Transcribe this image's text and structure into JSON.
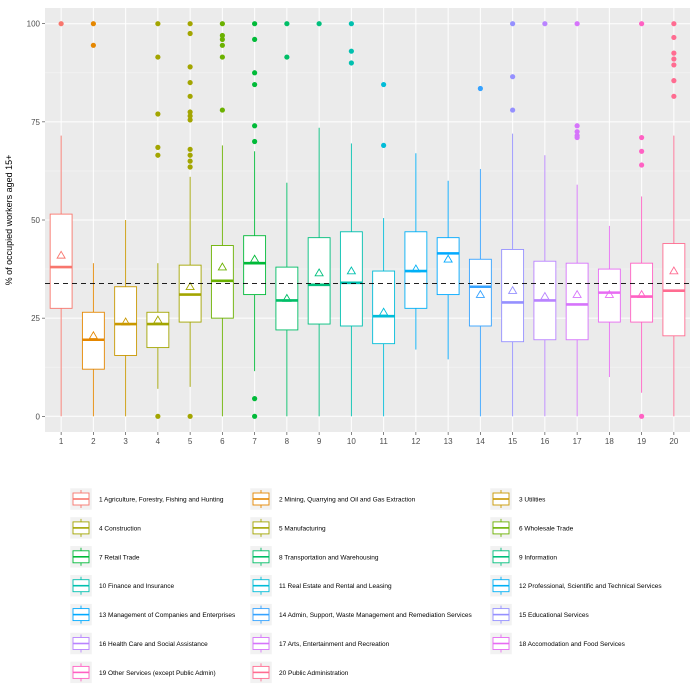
{
  "chart_data": {
    "type": "boxplot",
    "title": "",
    "xlabel": "",
    "ylabel": "% of occupied workers aged 15+",
    "ylim": [
      -4,
      104
    ],
    "y_ticks": [
      0,
      25,
      50,
      75,
      100
    ],
    "categories": [
      "1",
      "2",
      "3",
      "4",
      "5",
      "6",
      "7",
      "8",
      "9",
      "10",
      "11",
      "12",
      "13",
      "14",
      "15",
      "16",
      "17",
      "18",
      "19",
      "20"
    ],
    "reference_line": 33.8,
    "grid": true,
    "legend_position": "bottom",
    "series": [
      {
        "name": "1 Agriculture, Forestry, Fishing and Hunting",
        "color": "#F8766D",
        "whisker_low": 0,
        "q1": 27.5,
        "median": 38,
        "q3": 51.5,
        "whisker_high": 71.5,
        "mean": 41,
        "outliers": [
          100
        ]
      },
      {
        "name": "2 Mining, Quarrying and Oil and Gas Extraction",
        "color": "#E58700",
        "whisker_low": 0,
        "q1": 12,
        "median": 19.5,
        "q3": 26.5,
        "whisker_high": 39,
        "mean": 20.5,
        "outliers": [
          94.5,
          100
        ]
      },
      {
        "name": "3 Utilities",
        "color": "#C99800",
        "whisker_low": 0,
        "q1": 15.5,
        "median": 23.5,
        "q3": 33,
        "whisker_high": 50,
        "mean": 24,
        "outliers": []
      },
      {
        "name": "4 Construction",
        "color": "#A3A500",
        "whisker_low": 7,
        "q1": 17.5,
        "median": 23.5,
        "q3": 26.5,
        "whisker_high": 39,
        "mean": 24.5,
        "outliers": [
          0,
          66.5,
          68.5,
          77,
          91.5,
          100
        ]
      },
      {
        "name": "5 Manufacturing",
        "color": "#A3A500",
        "whisker_low": 7.5,
        "q1": 24,
        "median": 31,
        "q3": 38.5,
        "whisker_high": 61,
        "mean": 33,
        "outliers": [
          0,
          63.5,
          65,
          66.5,
          68,
          75.5,
          76.5,
          77.5,
          81.5,
          85,
          89,
          97.5,
          100
        ]
      },
      {
        "name": "6 Wholesale Trade",
        "color": "#6BB100",
        "whisker_low": 0,
        "q1": 25,
        "median": 34.5,
        "q3": 43.5,
        "whisker_high": 69,
        "mean": 38,
        "outliers": [
          78,
          91.5,
          94.5,
          96,
          97,
          100
        ]
      },
      {
        "name": "7 Retail Trade",
        "color": "#00BA38",
        "whisker_low": 11.5,
        "q1": 31,
        "median": 39,
        "q3": 46,
        "whisker_high": 67.5,
        "mean": 40,
        "outliers": [
          0,
          4.5,
          70,
          74,
          84.5,
          87.5,
          96,
          100
        ]
      },
      {
        "name": "8 Transportation and Warehousing",
        "color": "#00BE67",
        "whisker_low": 0,
        "q1": 22,
        "median": 29.5,
        "q3": 38,
        "whisker_high": 59.5,
        "mean": 30,
        "outliers": [
          91.5,
          100
        ]
      },
      {
        "name": "9 Information",
        "color": "#00BF7D",
        "whisker_low": 0,
        "q1": 23.5,
        "median": 33.5,
        "q3": 45.5,
        "whisker_high": 73.5,
        "mean": 36.5,
        "outliers": [
          100
        ]
      },
      {
        "name": "10 Finance and Insurance",
        "color": "#00C0AF",
        "whisker_low": 0,
        "q1": 23,
        "median": 34,
        "q3": 47,
        "whisker_high": 69.5,
        "mean": 37,
        "outliers": [
          90,
          93,
          100
        ]
      },
      {
        "name": "11 Real Estate and Rental and Leasing",
        "color": "#00BCD8",
        "whisker_low": 0,
        "q1": 18.5,
        "median": 25.5,
        "q3": 37,
        "whisker_high": 50.5,
        "mean": 26.5,
        "outliers": [
          69,
          84.5
        ]
      },
      {
        "name": "12 Professional, Scientific and Technical Services",
        "color": "#00B0F6",
        "whisker_low": 17,
        "q1": 27.5,
        "median": 37,
        "q3": 47,
        "whisker_high": 67,
        "mean": 37.5,
        "outliers": []
      },
      {
        "name": "13 Management of Companies and Enterprises",
        "color": "#00A9FF",
        "whisker_low": 14.5,
        "q1": 31,
        "median": 41.5,
        "q3": 45.5,
        "whisker_high": 60,
        "mean": 40,
        "outliers": []
      },
      {
        "name": "14 Admin, Support, Waste Management and Remediation Services",
        "color": "#35A2FF",
        "whisker_low": 0,
        "q1": 23,
        "median": 33,
        "q3": 40,
        "whisker_high": 63,
        "mean": 31,
        "outliers": [
          83.5
        ]
      },
      {
        "name": "15 Educational Services",
        "color": "#9590FF",
        "whisker_low": 0,
        "q1": 19,
        "median": 29,
        "q3": 42.5,
        "whisker_high": 72,
        "mean": 32,
        "outliers": [
          78,
          86.5,
          100
        ]
      },
      {
        "name": "16 Health Care and Social Assistance",
        "color": "#B983FF",
        "whisker_low": 0,
        "q1": 19.5,
        "median": 29.5,
        "q3": 39.5,
        "whisker_high": 66.5,
        "mean": 30.5,
        "outliers": [
          100
        ]
      },
      {
        "name": "17 Arts, Entertainment and Recreation",
        "color": "#D674FB",
        "whisker_low": 0,
        "q1": 19.5,
        "median": 28.5,
        "q3": 39,
        "whisker_high": 59,
        "mean": 31,
        "outliers": [
          71,
          71.5,
          72.5,
          74,
          100
        ]
      },
      {
        "name": "18 Accomodation and Food Services",
        "color": "#E76BF3",
        "whisker_low": 10,
        "q1": 24,
        "median": 31.5,
        "q3": 37.5,
        "whisker_high": 48.5,
        "mean": 31,
        "outliers": []
      },
      {
        "name": "19 Other Services (except Public Admin)",
        "color": "#FF61C3",
        "whisker_low": 6,
        "q1": 24,
        "median": 30.5,
        "q3": 39,
        "whisker_high": 56,
        "mean": 31,
        "outliers": [
          0,
          64,
          67.5,
          71,
          100
        ]
      },
      {
        "name": "20 Public Administration",
        "color": "#FF6C91",
        "whisker_low": 0,
        "q1": 20.5,
        "median": 32,
        "q3": 44,
        "whisker_high": 71.5,
        "mean": 37,
        "outliers": [
          81.5,
          85.5,
          89.5,
          91,
          92.5,
          96.5,
          100
        ]
      }
    ]
  }
}
